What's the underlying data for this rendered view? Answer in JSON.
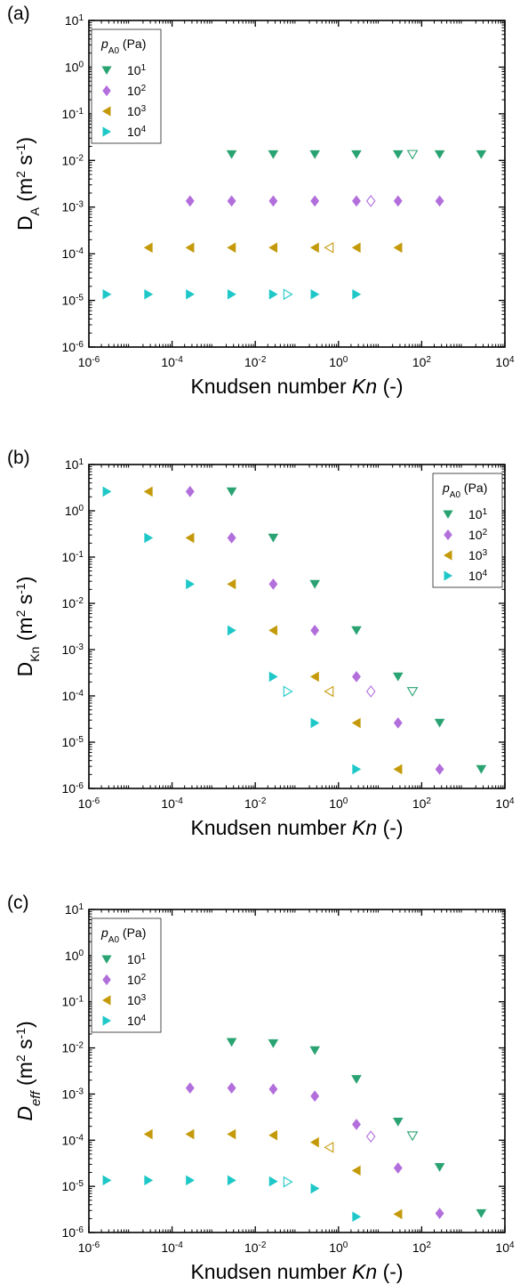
{
  "colors": {
    "10^1": "#2aa372",
    "10^2": "#b26fdc",
    "10^3": "#c49a0a",
    "10^4": "#1fc8c8"
  },
  "chart_data": [
    {
      "type": "scatter",
      "panel_label": "(a)",
      "xscale": "log",
      "yscale": "log",
      "xlim": [
        1e-06,
        10000.0
      ],
      "ylim": [
        1e-06,
        10
      ],
      "x_ticks": [
        1e-06,
        0.0001,
        0.01,
        1,
        100.0,
        10000.0
      ],
      "y_ticks": [
        1e-06,
        1e-05,
        0.0001,
        0.001,
        0.01,
        0.1,
        1,
        10
      ],
      "xlabel": "Knudsen number Kn (-)",
      "ylabel": "D_A (m^2 s^-1)",
      "legend": {
        "title": "p_A0 (Pa)",
        "position": "top-left"
      },
      "series": [
        {
          "name": "10^1",
          "marker": "triangle-down",
          "x": [
            0.0027,
            0.027,
            0.27,
            2.7,
            27,
            270,
            2700
          ],
          "y": [
            0.0135,
            0.0135,
            0.0135,
            0.0135,
            0.0135,
            0.0135,
            0.0135
          ],
          "open_point": {
            "x": 60,
            "y": 0.0135
          }
        },
        {
          "name": "10^2",
          "marker": "diamond",
          "x": [
            0.00027,
            0.0027,
            0.027,
            0.27,
            2.7,
            27,
            270
          ],
          "y": [
            0.00135,
            0.00135,
            0.00135,
            0.00135,
            0.00135,
            0.00135,
            0.00135
          ],
          "open_point": {
            "x": 6,
            "y": 0.00135
          }
        },
        {
          "name": "10^3",
          "marker": "triangle-left",
          "x": [
            2.7e-05,
            0.00027,
            0.0027,
            0.027,
            0.27,
            2.7,
            27
          ],
          "y": [
            0.000135,
            0.000135,
            0.000135,
            0.000135,
            0.000135,
            0.000135,
            0.000135
          ],
          "open_point": {
            "x": 0.6,
            "y": 0.000135
          }
        },
        {
          "name": "10^4",
          "marker": "triangle-right",
          "x": [
            2.7e-06,
            2.7e-05,
            0.00027,
            0.0027,
            0.027,
            0.27,
            2.7
          ],
          "y": [
            1.35e-05,
            1.35e-05,
            1.35e-05,
            1.35e-05,
            1.35e-05,
            1.35e-05,
            1.35e-05
          ],
          "open_point": {
            "x": 0.06,
            "y": 1.35e-05
          }
        }
      ]
    },
    {
      "type": "scatter",
      "panel_label": "(b)",
      "xscale": "log",
      "yscale": "log",
      "xlim": [
        1e-06,
        10000.0
      ],
      "ylim": [
        1e-06,
        10
      ],
      "x_ticks": [
        1e-06,
        0.0001,
        0.01,
        1,
        100.0,
        10000.0
      ],
      "y_ticks": [
        1e-06,
        1e-05,
        0.0001,
        0.001,
        0.01,
        0.1,
        1,
        10
      ],
      "xlabel": "Knudsen number Kn (-)",
      "ylabel": "D_Kn (m^2 s^-1)",
      "legend": {
        "title": "p_A0 (Pa)",
        "position": "top-right"
      },
      "series": [
        {
          "name": "10^1",
          "marker": "triangle-down",
          "x": [
            0.0027,
            0.027,
            0.27,
            2.7,
            27,
            270,
            2700
          ],
          "y": [
            2.6,
            0.26,
            0.026,
            0.0026,
            0.00026,
            2.6e-05,
            2.6e-06
          ],
          "open_point": {
            "x": 60,
            "y": 0.000125
          }
        },
        {
          "name": "10^2",
          "marker": "diamond",
          "x": [
            0.00027,
            0.0027,
            0.027,
            0.27,
            2.7,
            27,
            270
          ],
          "y": [
            2.6,
            0.26,
            0.026,
            0.0026,
            0.00026,
            2.6e-05,
            2.6e-06
          ],
          "open_point": {
            "x": 6,
            "y": 0.000125
          }
        },
        {
          "name": "10^3",
          "marker": "triangle-left",
          "x": [
            2.7e-05,
            0.00027,
            0.0027,
            0.027,
            0.27,
            2.7,
            27
          ],
          "y": [
            2.6,
            0.26,
            0.026,
            0.0026,
            0.00026,
            2.6e-05,
            2.6e-06
          ],
          "open_point": {
            "x": 0.6,
            "y": 0.000125
          }
        },
        {
          "name": "10^4",
          "marker": "triangle-right",
          "x": [
            2.7e-06,
            2.7e-05,
            0.00027,
            0.0027,
            0.027,
            0.27,
            2.7
          ],
          "y": [
            2.6,
            0.26,
            0.026,
            0.0026,
            0.00026,
            2.6e-05,
            2.6e-06
          ],
          "open_point": {
            "x": 0.06,
            "y": 0.000125
          }
        }
      ]
    },
    {
      "type": "scatter",
      "panel_label": "(c)",
      "xscale": "log",
      "yscale": "log",
      "xlim": [
        1e-06,
        10000.0
      ],
      "ylim": [
        1e-06,
        10
      ],
      "x_ticks": [
        1e-06,
        0.0001,
        0.01,
        1,
        100.0,
        10000.0
      ],
      "y_ticks": [
        1e-06,
        1e-05,
        0.0001,
        0.001,
        0.01,
        0.1,
        1,
        10
      ],
      "xlabel": "Knudsen number Kn (-)",
      "ylabel": "D_eff (m^2 s^-1)",
      "legend": {
        "title": "p_A0 (Pa)",
        "position": "top-left"
      },
      "series": [
        {
          "name": "10^1",
          "marker": "triangle-down",
          "x": [
            0.0027,
            0.027,
            0.27,
            2.7,
            27,
            270,
            2700
          ],
          "y": [
            0.0133,
            0.0125,
            0.0088,
            0.0021,
            0.00025,
            2.6e-05,
            2.6e-06
          ],
          "open_point": {
            "x": 60,
            "y": 0.000125
          }
        },
        {
          "name": "10^2",
          "marker": "diamond",
          "x": [
            0.00027,
            0.0027,
            0.027,
            0.27,
            2.7,
            27,
            270
          ],
          "y": [
            0.00135,
            0.00135,
            0.00128,
            0.0009,
            0.00022,
            2.5e-05,
            2.6e-06
          ],
          "open_point": {
            "x": 6,
            "y": 0.00012
          }
        },
        {
          "name": "10^3",
          "marker": "triangle-left",
          "x": [
            2.7e-05,
            0.00027,
            0.0027,
            0.027,
            0.27,
            2.7,
            27
          ],
          "y": [
            0.000135,
            0.000135,
            0.000135,
            0.000128,
            9e-05,
            2.2e-05,
            2.5e-06
          ],
          "open_point": {
            "x": 0.6,
            "y": 7e-05
          }
        },
        {
          "name": "10^4",
          "marker": "triangle-right",
          "x": [
            2.7e-06,
            2.7e-05,
            0.00027,
            0.0027,
            0.027,
            0.27,
            2.7
          ],
          "y": [
            1.35e-05,
            1.35e-05,
            1.35e-05,
            1.35e-05,
            1.28e-05,
            9e-06,
            2.2e-06
          ],
          "open_point": {
            "x": 0.06,
            "y": 1.25e-05
          }
        }
      ]
    }
  ]
}
